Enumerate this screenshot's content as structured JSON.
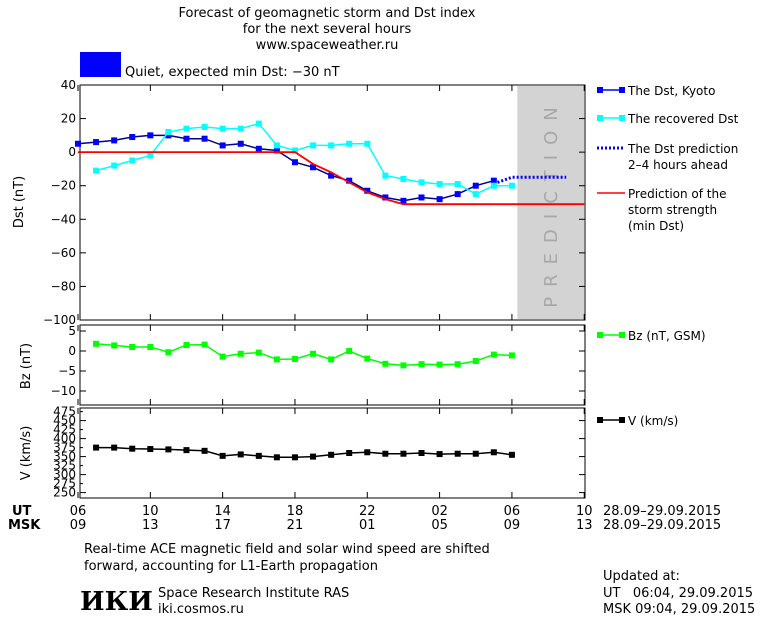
{
  "header": {
    "title_line1": "Forecast of geomagnetic storm and Dst index",
    "title_line2": "for the next several hours",
    "url": "www.spaceweather.ru",
    "status_text": "Quiet, expected min Dst: −30 nT",
    "status_color": "#0000ff"
  },
  "chart_data": [
    {
      "type": "line",
      "panel": "dst",
      "ylabel": "Dst (nT)",
      "ylim": [
        -100,
        40
      ],
      "yticks": [
        40,
        20,
        0,
        -20,
        -40,
        -60,
        -80,
        -100
      ],
      "x_unit": "hours UT since 28.09 06:00",
      "xlim": [
        0,
        28
      ],
      "prediction_region": [
        24.3,
        28
      ],
      "prediction_label": "PREDICTION",
      "series": [
        {
          "name": "The Dst, Kyoto",
          "color": "#0000ff",
          "marker": "square",
          "x": [
            0,
            1,
            2,
            3,
            4,
            5,
            6,
            7,
            8,
            9,
            10,
            11,
            12,
            13,
            14,
            15,
            16,
            17,
            18,
            19,
            20,
            21,
            22,
            23
          ],
          "y": [
            5,
            6,
            7,
            9,
            10,
            10,
            8,
            8,
            4,
            5,
            2,
            1,
            -6,
            -9,
            -14,
            -17,
            -23,
            -27,
            -29,
            -27,
            -28,
            -25,
            -20,
            -17
          ]
        },
        {
          "name": "The recovered Dst",
          "color": "#00ffff",
          "marker": "square",
          "x": [
            1,
            2,
            3,
            4,
            5,
            6,
            7,
            8,
            9,
            10,
            11,
            12,
            13,
            14,
            15,
            16,
            17,
            18,
            19,
            20,
            21,
            22,
            23,
            24
          ],
          "y": [
            -11,
            -8,
            -5,
            -2,
            12,
            14,
            15,
            14,
            14,
            17,
            4,
            1,
            4,
            4,
            5,
            5,
            -14,
            -16,
            -18,
            -19,
            -19,
            -25,
            -20,
            -20
          ]
        },
        {
          "name": "The Dst prediction\n2–4 hours ahead",
          "color": "#0000ff",
          "style": "dotted",
          "x": [
            23.2,
            24,
            25,
            26,
            27
          ],
          "y": [
            -18,
            -15,
            -15,
            -15,
            -15
          ]
        },
        {
          "name": "Prediction of the\nstorm strength\n(min Dst)",
          "color": "#ff0000",
          "style": "solid",
          "x": [
            0,
            12,
            13,
            14,
            15,
            16,
            17,
            18,
            28
          ],
          "y": [
            0,
            0,
            -7,
            -12,
            -18,
            -24,
            -28,
            -31,
            -31
          ]
        }
      ]
    },
    {
      "type": "line",
      "panel": "bz",
      "ylabel": "Bz (nT)",
      "ylim": [
        -13.5,
        6.5
      ],
      "yticks": [
        5,
        0,
        -5,
        -10
      ],
      "series": [
        {
          "name": "Bz (nT, GSM)",
          "color": "#00ff00",
          "marker": "square",
          "x": [
            1,
            2,
            3,
            4,
            5,
            6,
            7,
            8,
            9,
            10,
            11,
            12,
            13,
            14,
            15,
            16,
            17,
            18,
            19,
            20,
            21,
            22,
            23,
            24
          ],
          "y": [
            1.8,
            1.4,
            1,
            1,
            -0.3,
            1.5,
            1.6,
            -1.4,
            -0.7,
            -0.4,
            -2.1,
            -2,
            -0.7,
            -2.1,
            0,
            -1.9,
            -3.2,
            -3.6,
            -3.3,
            -3.4,
            -3.3,
            -2.5,
            -0.9,
            -1.1
          ]
        }
      ]
    },
    {
      "type": "line",
      "panel": "v",
      "ylabel": "V (km/s)",
      "ylim": [
        235,
        485
      ],
      "yticks": [
        450,
        400,
        350,
        300,
        250
      ],
      "ytick_labels": [
        "450",
        "400",
        "350",
        "300",
        "250"
      ],
      "ytick_labels_minor": [
        "475",
        "425",
        "375",
        "325",
        "275"
      ],
      "series": [
        {
          "name": "V (km/s)",
          "color": "#000000",
          "marker": "square",
          "x": [
            1,
            2,
            3,
            4,
            5,
            6,
            7,
            8,
            9,
            10,
            11,
            12,
            13,
            14,
            15,
            16,
            17,
            18,
            19,
            20,
            21,
            22,
            23,
            24
          ],
          "y": [
            375,
            375,
            372,
            371,
            370,
            368,
            366,
            352,
            356,
            352,
            348,
            348,
            350,
            355,
            360,
            362,
            358,
            358,
            360,
            357,
            358,
            358,
            362,
            355
          ]
        }
      ]
    }
  ],
  "x_axis": {
    "ut_label": "UT",
    "msk_label": "MSK",
    "ut_ticks": [
      "06",
      "10",
      "14",
      "18",
      "22",
      "02",
      "06",
      "10"
    ],
    "msk_ticks": [
      "09",
      "13",
      "17",
      "21",
      "01",
      "05",
      "09",
      "13"
    ],
    "date_range_ut": "28.09–29.09.2015",
    "date_range_msk": "28.09–29.09.2015"
  },
  "footer": {
    "note_line1": "Real-time ACE magnetic field and solar wind speed are shifted",
    "note_line2": "forward, accounting for L1-Earth propagation",
    "logo": "ИКИ",
    "institute": "Space Research Institute RAS",
    "site": "iki.cosmos.ru",
    "updated_label": "Updated at:",
    "updated_ut": "UT   06:04, 29.09.2015",
    "updated_msk": "MSK 09:04, 29.09.2015"
  }
}
